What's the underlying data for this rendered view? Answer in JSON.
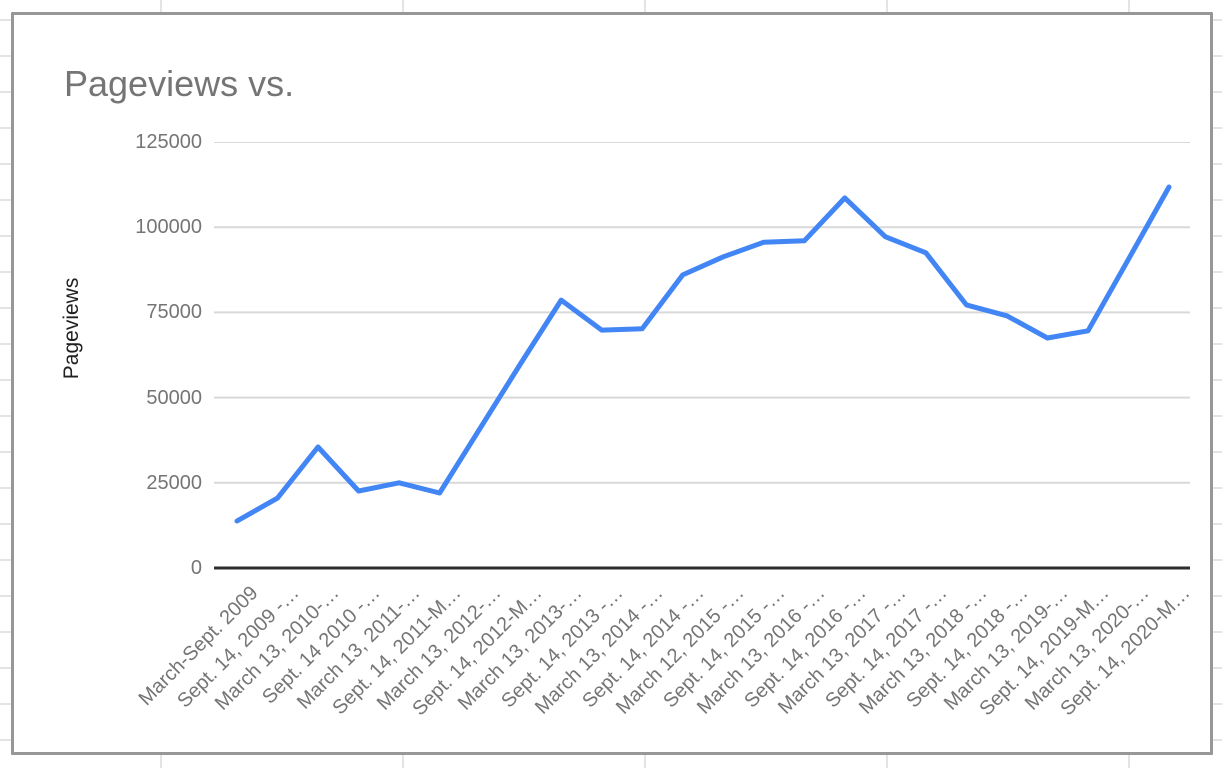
{
  "chart_data": {
    "type": "line",
    "title": "Pageviews vs.",
    "xlabel": "",
    "ylabel": "Pageviews",
    "categories": [
      "March-Sept. 2009",
      "Sept. 14, 2009 -…",
      "March 13, 2010-…",
      "Sept. 14 2010 -…",
      "March 13, 2011-…",
      "Sept. 14, 2011-M…",
      "March 13, 2012-…",
      "Sept. 14, 2012-M…",
      "March 13, 2013-…",
      "Sept. 14, 2013 -…",
      "March 13, 2014 -…",
      "Sept. 14, 2014 -…",
      "March 12, 2015 -…",
      "Sept. 14, 2015 -…",
      "March 13, 2016 -…",
      "Sept. 14, 2016 -…",
      "March 13, 2017 -…",
      "Sept. 14, 2017 -…",
      "March 13, 2018 -…",
      "Sept. 14, 2018 -…",
      "March 13, 2019-…",
      "Sept. 14, 2019-M…",
      "March 13, 2020-…",
      "Sept. 14, 2020-M…"
    ],
    "series": [
      {
        "name": "Pageviews",
        "values": [
          13800,
          20500,
          35500,
          22600,
          25000,
          22000,
          41000,
          60000,
          78600,
          69800,
          70200,
          86000,
          91300,
          95600,
          96000,
          108600,
          97200,
          92500,
          77200,
          74000,
          67500,
          69600,
          90600,
          111800
        ]
      }
    ],
    "ylim": [
      0,
      125000
    ],
    "y_ticks": [
      125000,
      100000,
      75000,
      50000,
      25000,
      0
    ],
    "grid": true,
    "legend_position": "none"
  },
  "colors": {
    "series": "#4285f4",
    "gridline": "#d9d9d9",
    "zero_axis": "#2e2e2e",
    "tick_text": "#757575",
    "title_text": "#757575",
    "axis_title_text": "#212121",
    "card_border": "#979797",
    "sheet_grid": "#e4e4e4"
  }
}
